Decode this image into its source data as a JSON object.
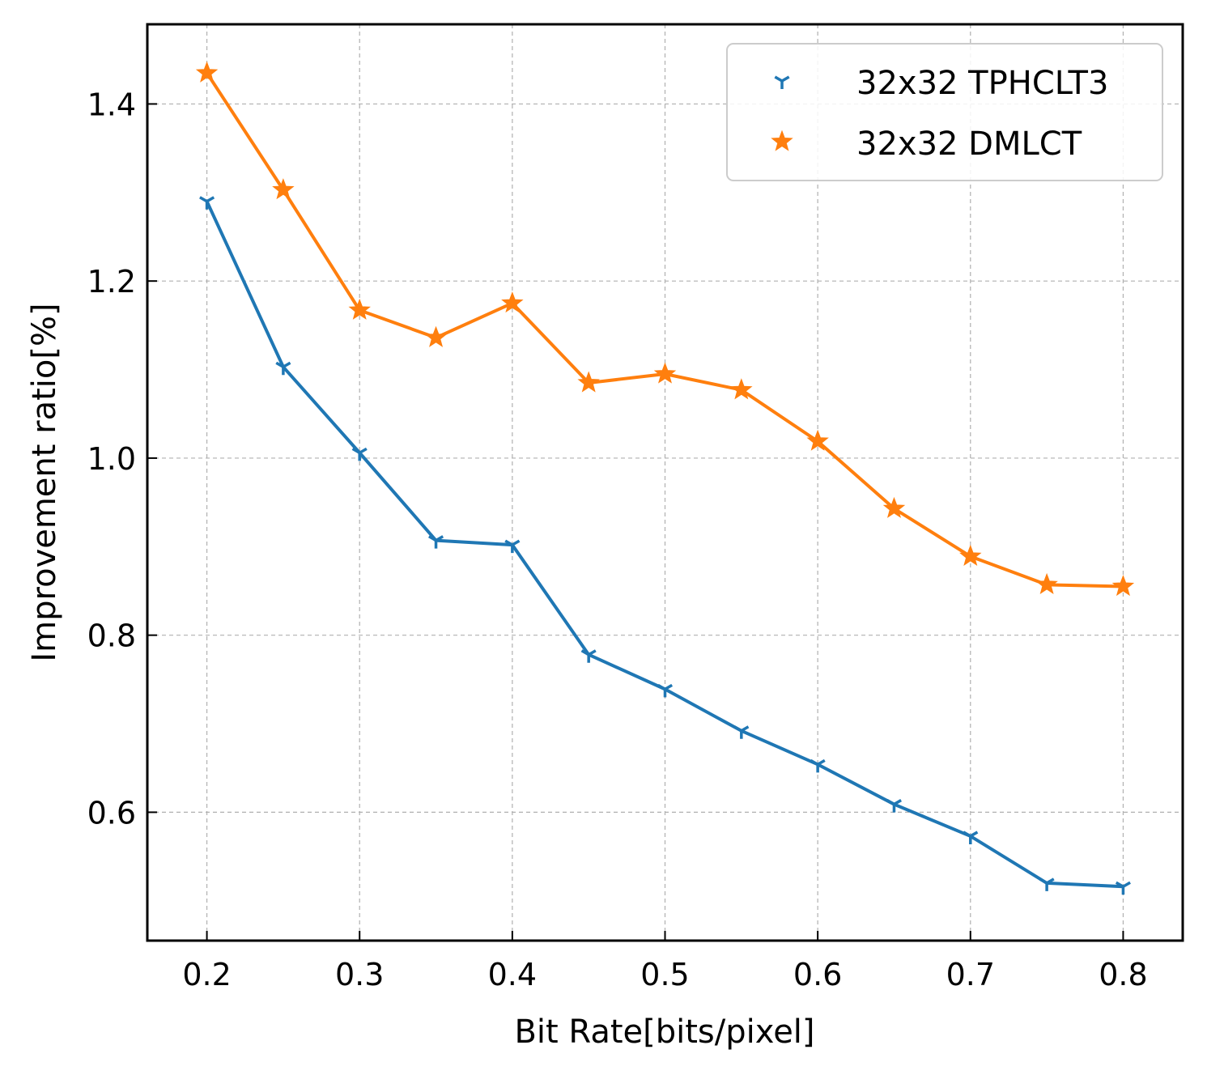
{
  "chart_data": {
    "type": "line",
    "xlabel": "Bit Rate[bits/pixel]",
    "ylabel": "Improvement ratio[%]",
    "xlim": [
      0.161,
      0.839
    ],
    "ylim": [
      0.455,
      1.49
    ],
    "xticks": [
      0.2,
      0.3,
      0.4,
      0.5,
      0.6,
      0.7,
      0.8
    ],
    "xtick_labels": [
      "0.2",
      "0.3",
      "0.4",
      "0.5",
      "0.6",
      "0.7",
      "0.8"
    ],
    "yticks": [
      0.6,
      0.8,
      1.0,
      1.2,
      1.4
    ],
    "ytick_labels": [
      "0.6",
      "0.8",
      "1.0",
      "1.2",
      "1.4"
    ],
    "grid": true,
    "legend_position": "top-right",
    "x": [
      0.2,
      0.25,
      0.3,
      0.35,
      0.4,
      0.45,
      0.5,
      0.55,
      0.6,
      0.65,
      0.7,
      0.75,
      0.8
    ],
    "series": [
      {
        "name": "32x32 TPHCLT3",
        "color": "#1f77b4",
        "marker": "tri-down",
        "values": [
          1.29,
          1.103,
          1.006,
          0.907,
          0.902,
          0.778,
          0.739,
          0.692,
          0.654,
          0.609,
          0.573,
          0.52,
          0.516
        ]
      },
      {
        "name": "32x32 DMLCT",
        "color": "#ff7f0e",
        "marker": "star",
        "values": [
          1.435,
          1.303,
          1.167,
          1.136,
          1.175,
          1.085,
          1.095,
          1.077,
          1.019,
          0.943,
          0.889,
          0.857,
          0.855
        ]
      }
    ]
  }
}
